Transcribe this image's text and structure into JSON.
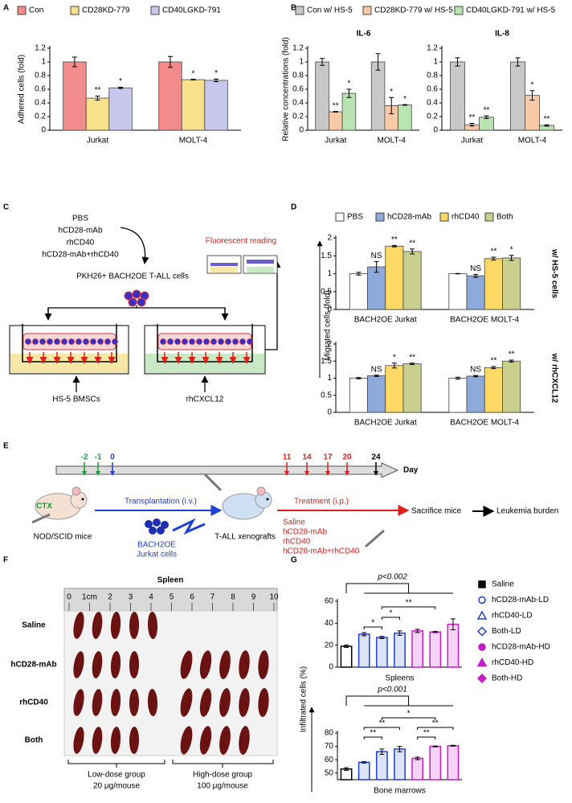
{
  "panels": [
    "A",
    "B",
    "C",
    "D",
    "E",
    "F",
    "G"
  ],
  "chart_data": [
    {
      "type": "bar",
      "ylabel": "Adhered cells (fold)",
      "categories": [
        "Jurkat",
        "MOLT-4"
      ],
      "series": [
        {
          "name": "Con",
          "color": "#f28b8b",
          "values": [
            1,
            1
          ],
          "errors": [
            0.07,
            0.08
          ]
        },
        {
          "name": "CD28KD-779",
          "color": "#f9e08b",
          "values": [
            0.47,
            0.74
          ],
          "errors": [
            0.03,
            0.005
          ],
          "significance": [
            "**",
            "*"
          ]
        },
        {
          "name": "CD40LGKD-791",
          "color": "#c8c8ee",
          "values": [
            0.62,
            0.73
          ],
          "errors": [
            0.01,
            0.02
          ],
          "significance": [
            "*",
            "*"
          ]
        }
      ],
      "ylim": [
        0,
        1.2
      ],
      "yticks": [
        0,
        0.2,
        0.4,
        0.6,
        0.8,
        1,
        1.2
      ]
    },
    {
      "type": "bar",
      "title": "IL-6",
      "ylabel": "Relative concentrations (fold)",
      "categories": [
        "Jurkat",
        "MOLT-4"
      ],
      "series": [
        {
          "name": "Con w/ HS-5",
          "color": "#c8c8c8",
          "values": [
            1,
            1
          ],
          "errors": [
            0.05,
            0.12
          ]
        },
        {
          "name": "CD28KD-779 w/ HS-5",
          "color": "#f8c9a6",
          "values": [
            0.27,
            0.36
          ],
          "errors": [
            0.005,
            0.12
          ],
          "significance": [
            "**",
            "*"
          ]
        },
        {
          "name": "CD40LGKD-791 w/ HS-5",
          "color": "#b9e3b0",
          "values": [
            0.54,
            0.37
          ],
          "errors": [
            0.06,
            0.005
          ],
          "significance": [
            "*",
            "*"
          ]
        }
      ],
      "ylim": [
        0,
        1.2
      ],
      "yticks": [
        0,
        0.2,
        0.4,
        0.6,
        0.8,
        1,
        1.2
      ]
    },
    {
      "type": "bar",
      "title": "IL-8",
      "categories": [
        "Jurkat",
        "MOLT-4"
      ],
      "series": [
        {
          "color": "#c8c8c8",
          "values": [
            1,
            1
          ],
          "errors": [
            0.06,
            0.06
          ]
        },
        {
          "color": "#f8c9a6",
          "values": [
            0.08,
            0.51
          ],
          "errors": [
            0.02,
            0.07
          ],
          "significance": [
            "**",
            "*"
          ]
        },
        {
          "color": "#b9e3b0",
          "values": [
            0.19,
            0.07
          ],
          "errors": [
            0.02,
            0.01
          ],
          "significance": [
            "**",
            "**"
          ]
        }
      ],
      "ylim": [
        0,
        1.2
      ],
      "yticks": [
        0,
        0.2,
        0.4,
        0.6,
        0.8,
        1,
        1.2
      ]
    },
    {
      "type": "bar",
      "ylabel": "Migrated cells (fold)",
      "side_label": "w/ HS-5 cells",
      "categories": [
        "BACH2OE Jurkat",
        "BACH2OE MOLT-4"
      ],
      "series": [
        {
          "name": "PBS",
          "color": "#ffffff",
          "values": [
            1,
            1
          ],
          "errors": [
            0.04,
            0.005
          ]
        },
        {
          "name": "hCD28-mAb",
          "color": "#8eaadb",
          "values": [
            1.19,
            0.94
          ],
          "errors": [
            0.15,
            0.04
          ],
          "significance": [
            "NS",
            "NS"
          ]
        },
        {
          "name": "rhCD40",
          "color": "#ffd966",
          "values": [
            1.77,
            1.42
          ],
          "errors": [
            0.02,
            0.04
          ],
          "significance": [
            "**",
            "**"
          ]
        },
        {
          "name": "Both",
          "color": "#c9cf8c",
          "values": [
            1.62,
            1.44
          ],
          "errors": [
            0.07,
            0.07
          ],
          "significance": [
            "**",
            "*"
          ]
        }
      ],
      "ylim": [
        0,
        2
      ],
      "yticks": [
        0,
        0.5,
        1,
        1.5,
        2
      ]
    },
    {
      "type": "bar",
      "side_label": "w/ rhCXCL12",
      "categories": [
        "BACH2OE Jurkat",
        "BACH2OE MOLT-4"
      ],
      "series": [
        {
          "color": "#ffffff",
          "values": [
            1,
            1
          ],
          "errors": [
            0.02,
            0.03
          ]
        },
        {
          "color": "#8eaadb",
          "values": [
            1.07,
            1.06
          ],
          "errors": [
            0.02,
            0.02
          ],
          "significance": [
            "NS",
            "NS"
          ]
        },
        {
          "color": "#ffd966",
          "values": [
            1.37,
            1.31
          ],
          "errors": [
            0.07,
            0.03
          ],
          "significance": [
            "*",
            "**"
          ]
        },
        {
          "color": "#c9cf8c",
          "values": [
            1.42,
            1.5
          ],
          "errors": [
            0.02,
            0.03
          ],
          "significance": [
            "**",
            "**"
          ]
        }
      ],
      "ylim": [
        0,
        2
      ],
      "yticks": [
        0,
        0.5,
        1,
        1.5,
        2
      ]
    },
    {
      "type": "bar",
      "ylabel": "Infiltrated cells (%)",
      "xlabel": "Spleens",
      "categories": [
        "Saline",
        "hCD28-mAb-LD",
        "rhCD40-LD",
        "Both-LD",
        "hCD28-mAb-HD",
        "rhCD40-HD",
        "Both-HD"
      ],
      "values": [
        19,
        30,
        27,
        31,
        33,
        32,
        39
      ],
      "errors": [
        1,
        1.5,
        1,
        2,
        1.5,
        0.5,
        5
      ],
      "colors": [
        "#ffffff",
        "#dde3f7",
        "#dde3f7",
        "#dde3f7",
        "#f6d2f6",
        "#f6d2f6",
        "#f6d2f6"
      ],
      "edgecolors": [
        "#000000",
        "#1f3fd6",
        "#1f3fd6",
        "#1f3fd6",
        "#c41fc4",
        "#c41fc4",
        "#c41fc4"
      ],
      "markers": [
        "square",
        "circle",
        "triangle",
        "diamond",
        "circle",
        "triangle",
        "diamond"
      ],
      "marker_fill": [
        true,
        false,
        false,
        false,
        true,
        true,
        true
      ],
      "annotations": [
        "p<0.002",
        "*",
        "*",
        "**"
      ],
      "ylim": [
        0,
        60
      ],
      "yticks": [
        0,
        20,
        40,
        60
      ]
    },
    {
      "type": "bar",
      "xlabel": "Bone marrows",
      "values": [
        53,
        58,
        66,
        68,
        61,
        70,
        70.5
      ],
      "errors": [
        1,
        0.5,
        2,
        2,
        1,
        0.3,
        0.3
      ],
      "colors": [
        "#ffffff",
        "#dde3f7",
        "#dde3f7",
        "#dde3f7",
        "#f6d2f6",
        "#f6d2f6",
        "#f6d2f6"
      ],
      "edgecolors": [
        "#000000",
        "#1f3fd6",
        "#1f3fd6",
        "#1f3fd6",
        "#c41fc4",
        "#c41fc4",
        "#c41fc4"
      ],
      "annotations": [
        "p<0.001",
        "*",
        "**",
        "**",
        "**",
        "**"
      ],
      "ylim": [
        45,
        80
      ],
      "yticks": [
        50,
        60,
        70,
        80
      ]
    }
  ],
  "panel_c": {
    "treatments": [
      "PBS",
      "hCD28-mAb",
      "rhCD40",
      "hCD28-mAb+rhCD40"
    ],
    "cells": "PKH26+ BACH2OE T-ALL cells",
    "reading": "Fluorescent reading",
    "wells": [
      "HS-5 BMSCs",
      "rhCXCL12"
    ]
  },
  "panel_e": {
    "days": [
      "-2",
      "-1",
      "0",
      "11",
      "14",
      "17",
      "20",
      "24"
    ],
    "day_colors": [
      "#1a9a3a",
      "#1a9a3a",
      "#1f3fd6",
      "#e0201a",
      "#e0201a",
      "#e0201a",
      "#e0201a",
      "#000000"
    ],
    "day_label": "Day",
    "ctx": "CTX",
    "mice": "NOD/SCID mice",
    "transplantation": "Transplantation (i.v.)",
    "cells": [
      "BACH2OE",
      "Jurkat cells"
    ],
    "xenografts": "T-ALL xenografts",
    "treatment": "Treatment (i.p.)",
    "treatments": [
      "Saline",
      "hCD28-mAb",
      "rhCD40",
      "hCD28-mAb+rhCD40"
    ],
    "sacrifice": "Sacrifice mice",
    "burden": "Leukemia burden"
  },
  "panel_f": {
    "title": "Spleen",
    "ruler": [
      "0",
      "1cm",
      "2",
      "3",
      "4",
      "5",
      "6",
      "7",
      "8",
      "9",
      "10"
    ],
    "rows": [
      "Saline",
      "hCD28-mAb",
      "rhCD40",
      "Both"
    ],
    "groups": [
      [
        "Low-dose group",
        "20 μg/mouse"
      ],
      [
        "High-dose group",
        "100 μg/mouse"
      ]
    ]
  }
}
